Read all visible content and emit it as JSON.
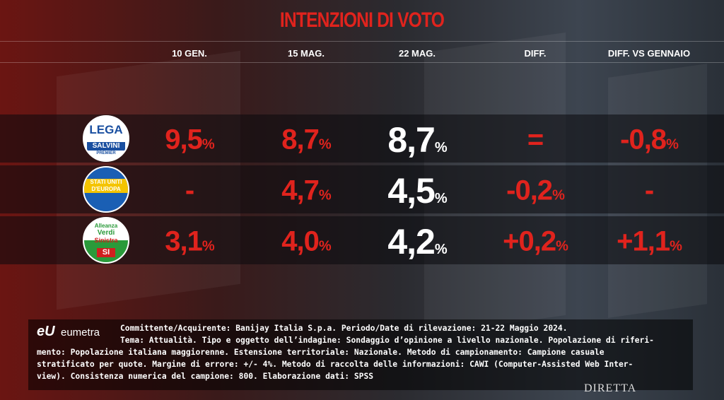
{
  "title": "INTENZIONI DI VOTO",
  "columns": [
    "10 GEN.",
    "15 MAG.",
    "22 MAG.",
    "DIFF.",
    "DIFF. VS GENNAIO"
  ],
  "rows": [
    {
      "logo": [
        "LEGA",
        "SALVINI",
        "PREMIER"
      ],
      "cells": [
        {
          "value": "9,5",
          "unit": "%"
        },
        {
          "value": "8,7",
          "unit": "%"
        },
        {
          "value": "8,7",
          "unit": "%"
        },
        {
          "value": "="
        },
        {
          "value": "-0,8",
          "unit": "%"
        }
      ]
    },
    {
      "logo": [
        "STATI UNITI",
        "D'EUROPA"
      ],
      "cells": [
        {
          "value": "-"
        },
        {
          "value": "4,7",
          "unit": "%"
        },
        {
          "value": "4,5",
          "unit": "%"
        },
        {
          "value": "-0,2",
          "unit": "%"
        },
        {
          "value": "-"
        }
      ]
    },
    {
      "logo": [
        "Alleanza",
        "Verdi",
        "Sinistra",
        "SI"
      ],
      "cells": [
        {
          "value": "3,1",
          "unit": "%"
        },
        {
          "value": "4,0",
          "unit": "%"
        },
        {
          "value": "4,2",
          "unit": "%"
        },
        {
          "value": "+0,2",
          "unit": "%"
        },
        {
          "value": "+1,1",
          "unit": "%"
        }
      ]
    }
  ],
  "footer": {
    "brand_mark": "eU",
    "brand": "eumetra",
    "lines": [
      "Committente/Acquirente: Banijay Italia S.p.a. Periodo/Date di rilevazione: 21-22 Maggio 2024.",
      "Tema: Attualità. Tipo e oggetto dell’indagine: Sondaggio d’opinione a livello nazionale. Popolazione di riferi-",
      "mento: Popolazione italiana maggiorenne. Estensione territoriale: Nazionale. Metodo di campionamento: Campione casuale",
      "stratificato per quote. Margine di errore: +/- 4%. Metodo di raccolta delle informazioni: CAWI (Computer-Assisted Web Inter-",
      "view). Consistenza numerica del campione: 800. Elaborazione dati: SPSS"
    ]
  },
  "badge": "DIRETTA"
}
